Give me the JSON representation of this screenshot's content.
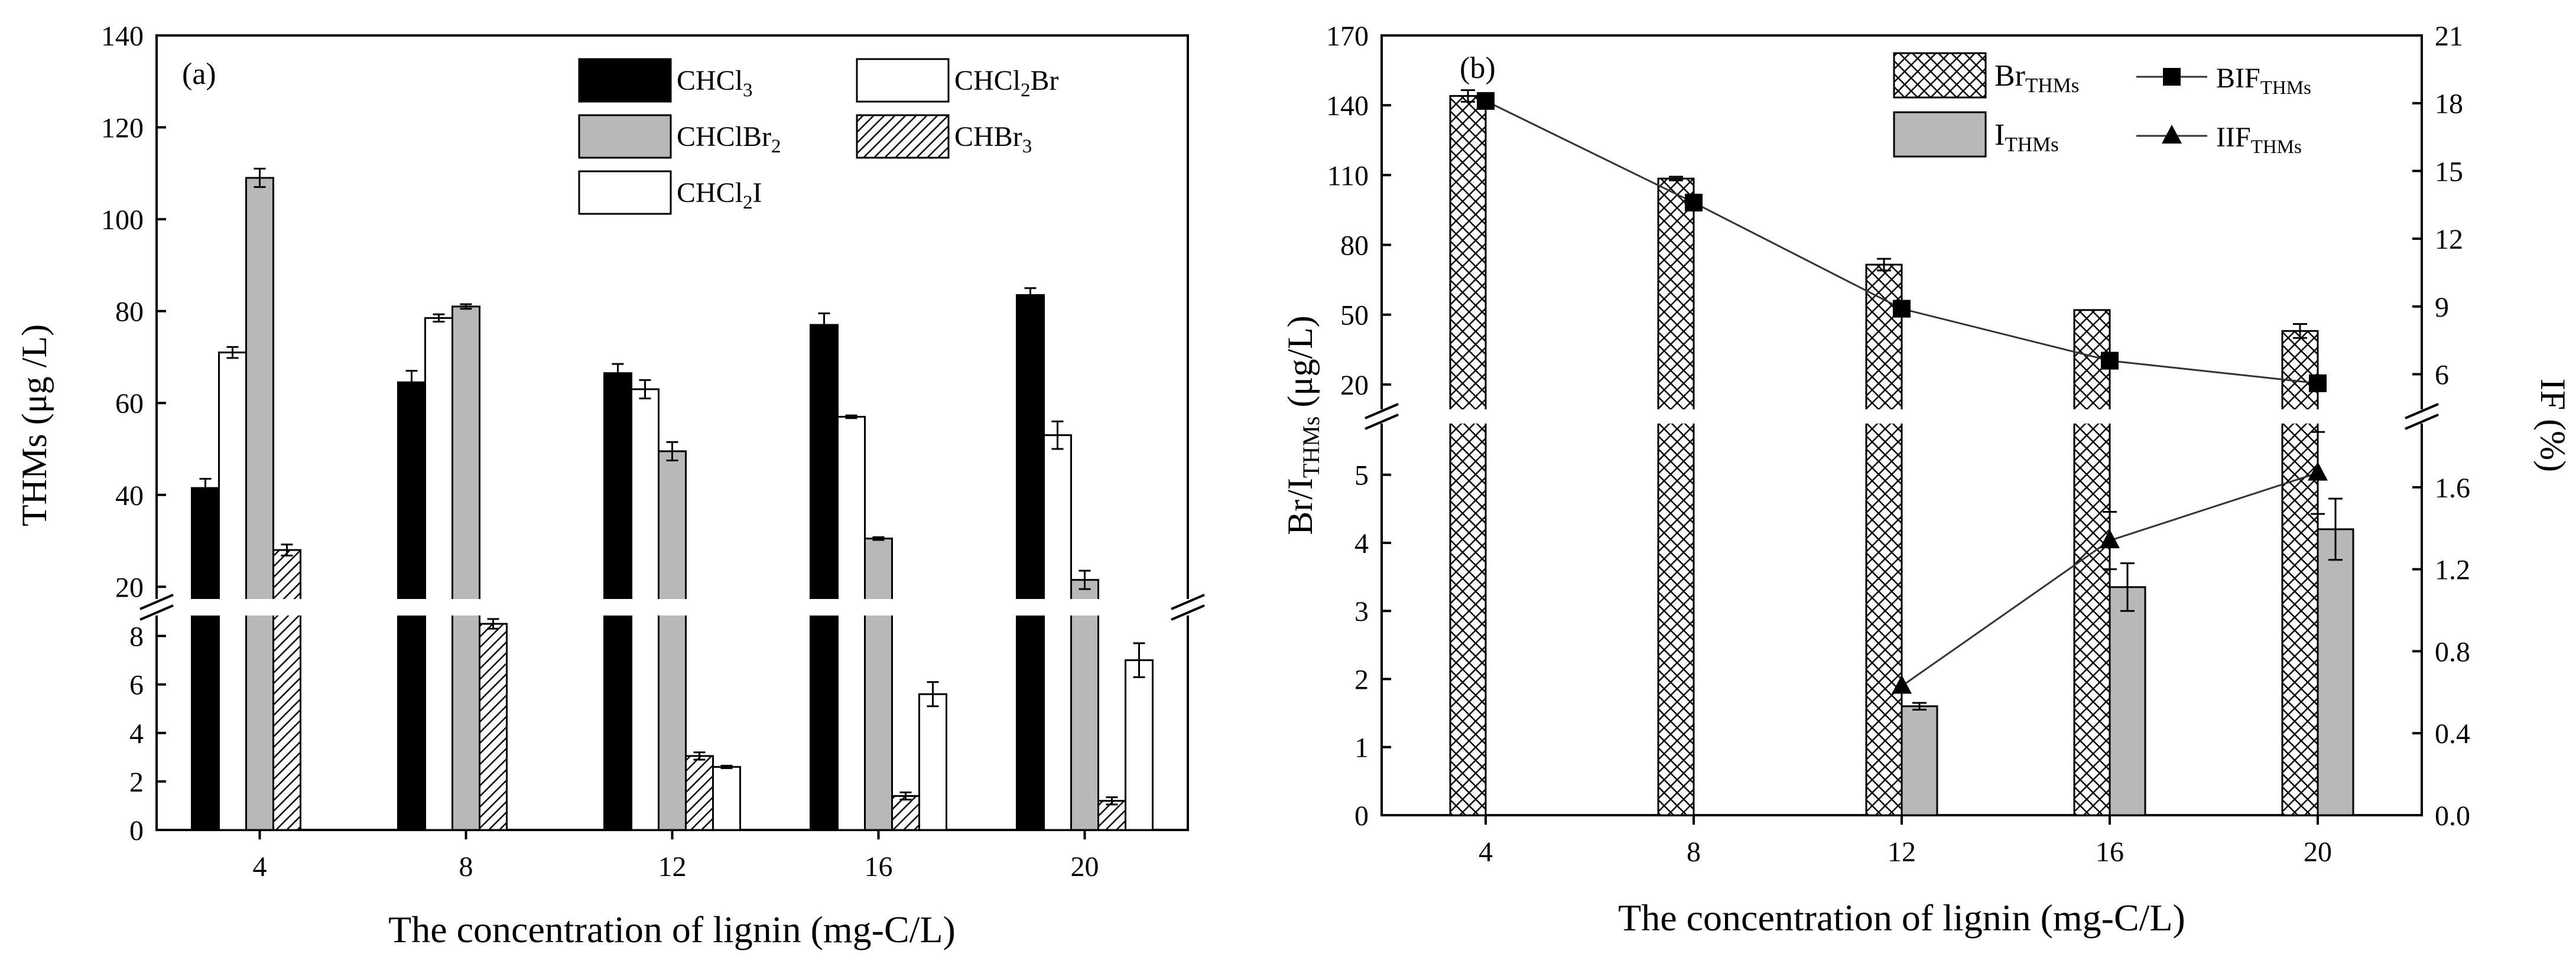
{
  "chart_data": [
    {
      "type": "bar",
      "panel_label": "(a)",
      "ylabel": "THMs (μg /L)",
      "xlabel": "The concentration of lignin (mg-C/L)",
      "categories": [
        "4",
        "8",
        "12",
        "16",
        "20"
      ],
      "y_axis_broken": true,
      "ylim_lower": [
        0,
        9.5
      ],
      "ylim_upper": [
        14,
        140
      ],
      "yticks_lower": [
        "0",
        "2",
        "4",
        "6",
        "8"
      ],
      "yticks_upper": [
        "20",
        "40",
        "60",
        "80",
        "100",
        "120",
        "140"
      ],
      "legend_position": "top-right",
      "series": [
        {
          "name": "CHCl3",
          "label_base": "CHCl",
          "label_sub": "3",
          "fill": "solid-black",
          "values": [
            41.5,
            64.5,
            66.5,
            77,
            83.5
          ],
          "errors": [
            2,
            2.5,
            2,
            2.5,
            1.5
          ]
        },
        {
          "name": "CHCl2Br",
          "label_base": "CHCl",
          "label_sub": "2",
          "label_tail": "Br",
          "fill": "white",
          "values": [
            71,
            78.5,
            63,
            57,
            53
          ],
          "errors": [
            1.2,
            0.8,
            2,
            0.3,
            3
          ]
        },
        {
          "name": "CHClBr2",
          "label_base": "CHClBr",
          "label_sub": "2",
          "fill": "gray",
          "values": [
            109,
            81,
            49.5,
            30.5,
            21.5
          ],
          "errors": [
            2,
            0.5,
            2,
            0.3,
            2
          ]
        },
        {
          "name": "CHBr3",
          "label_base": "CHBr",
          "label_sub": "3",
          "fill": "hatch",
          "values": [
            28,
            8.5,
            3.05,
            1.4,
            1.2
          ],
          "errors": [
            1.2,
            0.2,
            0.15,
            0.15,
            0.15
          ]
        },
        {
          "name": "CHCl2I",
          "label_base": "CHCl",
          "label_sub": "2",
          "label_tail": "I",
          "fill": "white",
          "values": [
            0,
            0,
            2.6,
            5.6,
            7.0
          ],
          "errors": [
            0,
            0,
            0.05,
            0.5,
            0.7
          ]
        }
      ]
    },
    {
      "type": "bar+line",
      "panel_label": "(b)",
      "ylabel": "Br/I",
      "ylabel_sub": "THMs",
      "ylabel_tail": " (μg/L)",
      "y2label": "IF (%)",
      "xlabel": "The concentration of lignin (mg-C/L)",
      "categories": [
        "4",
        "8",
        "12",
        "16",
        "20"
      ],
      "y_axis_broken": true,
      "ylim_lower": [
        0,
        5.9
      ],
      "ylim_upper": [
        5,
        170
      ],
      "yticks_lower": [
        "0",
        "1",
        "2",
        "3",
        "4",
        "5"
      ],
      "yticks_upper": [
        "20",
        "50",
        "80",
        "110",
        "140",
        "170"
      ],
      "y2lim_lower": [
        0,
        1.96
      ],
      "y2lim_upper": [
        4.0,
        21
      ],
      "y2ticks_lower": [
        "0.0",
        "0.4",
        "0.8",
        "1.2",
        "1.6"
      ],
      "y2ticks_upper": [
        "6",
        "9",
        "12",
        "15",
        "18",
        "21"
      ],
      "legend_position": "top-right",
      "bars": [
        {
          "name": "Br_THMs",
          "label_base": "Br",
          "label_sub": "THMs",
          "fill": "crosshatch",
          "values": [
            144,
            108.5,
            71.5,
            52,
            43
          ],
          "errors": [
            2.5,
            0.8,
            2.5,
            0,
            3
          ]
        },
        {
          "name": "I_THMs",
          "label_base": "I",
          "label_sub": "THMs",
          "fill": "gray",
          "values": [
            0,
            0,
            1.6,
            3.35,
            4.2
          ],
          "errors": [
            0,
            0,
            0.05,
            0.35,
            0.45
          ]
        }
      ],
      "lines": [
        {
          "name": "BIF_THMs",
          "label_base": "BIF",
          "label_sub": "THMs",
          "marker": "square",
          "values": [
            18.1,
            13.6,
            8.9,
            6.6,
            5.6
          ]
        },
        {
          "name": "IIF_THMs",
          "label_base": "IIF",
          "label_sub": "THMs",
          "marker": "triangle",
          "values": [
            null,
            null,
            0.63,
            1.34,
            1.67
          ],
          "errors": [
            0,
            0,
            0,
            0.14,
            0.2
          ]
        }
      ]
    }
  ]
}
